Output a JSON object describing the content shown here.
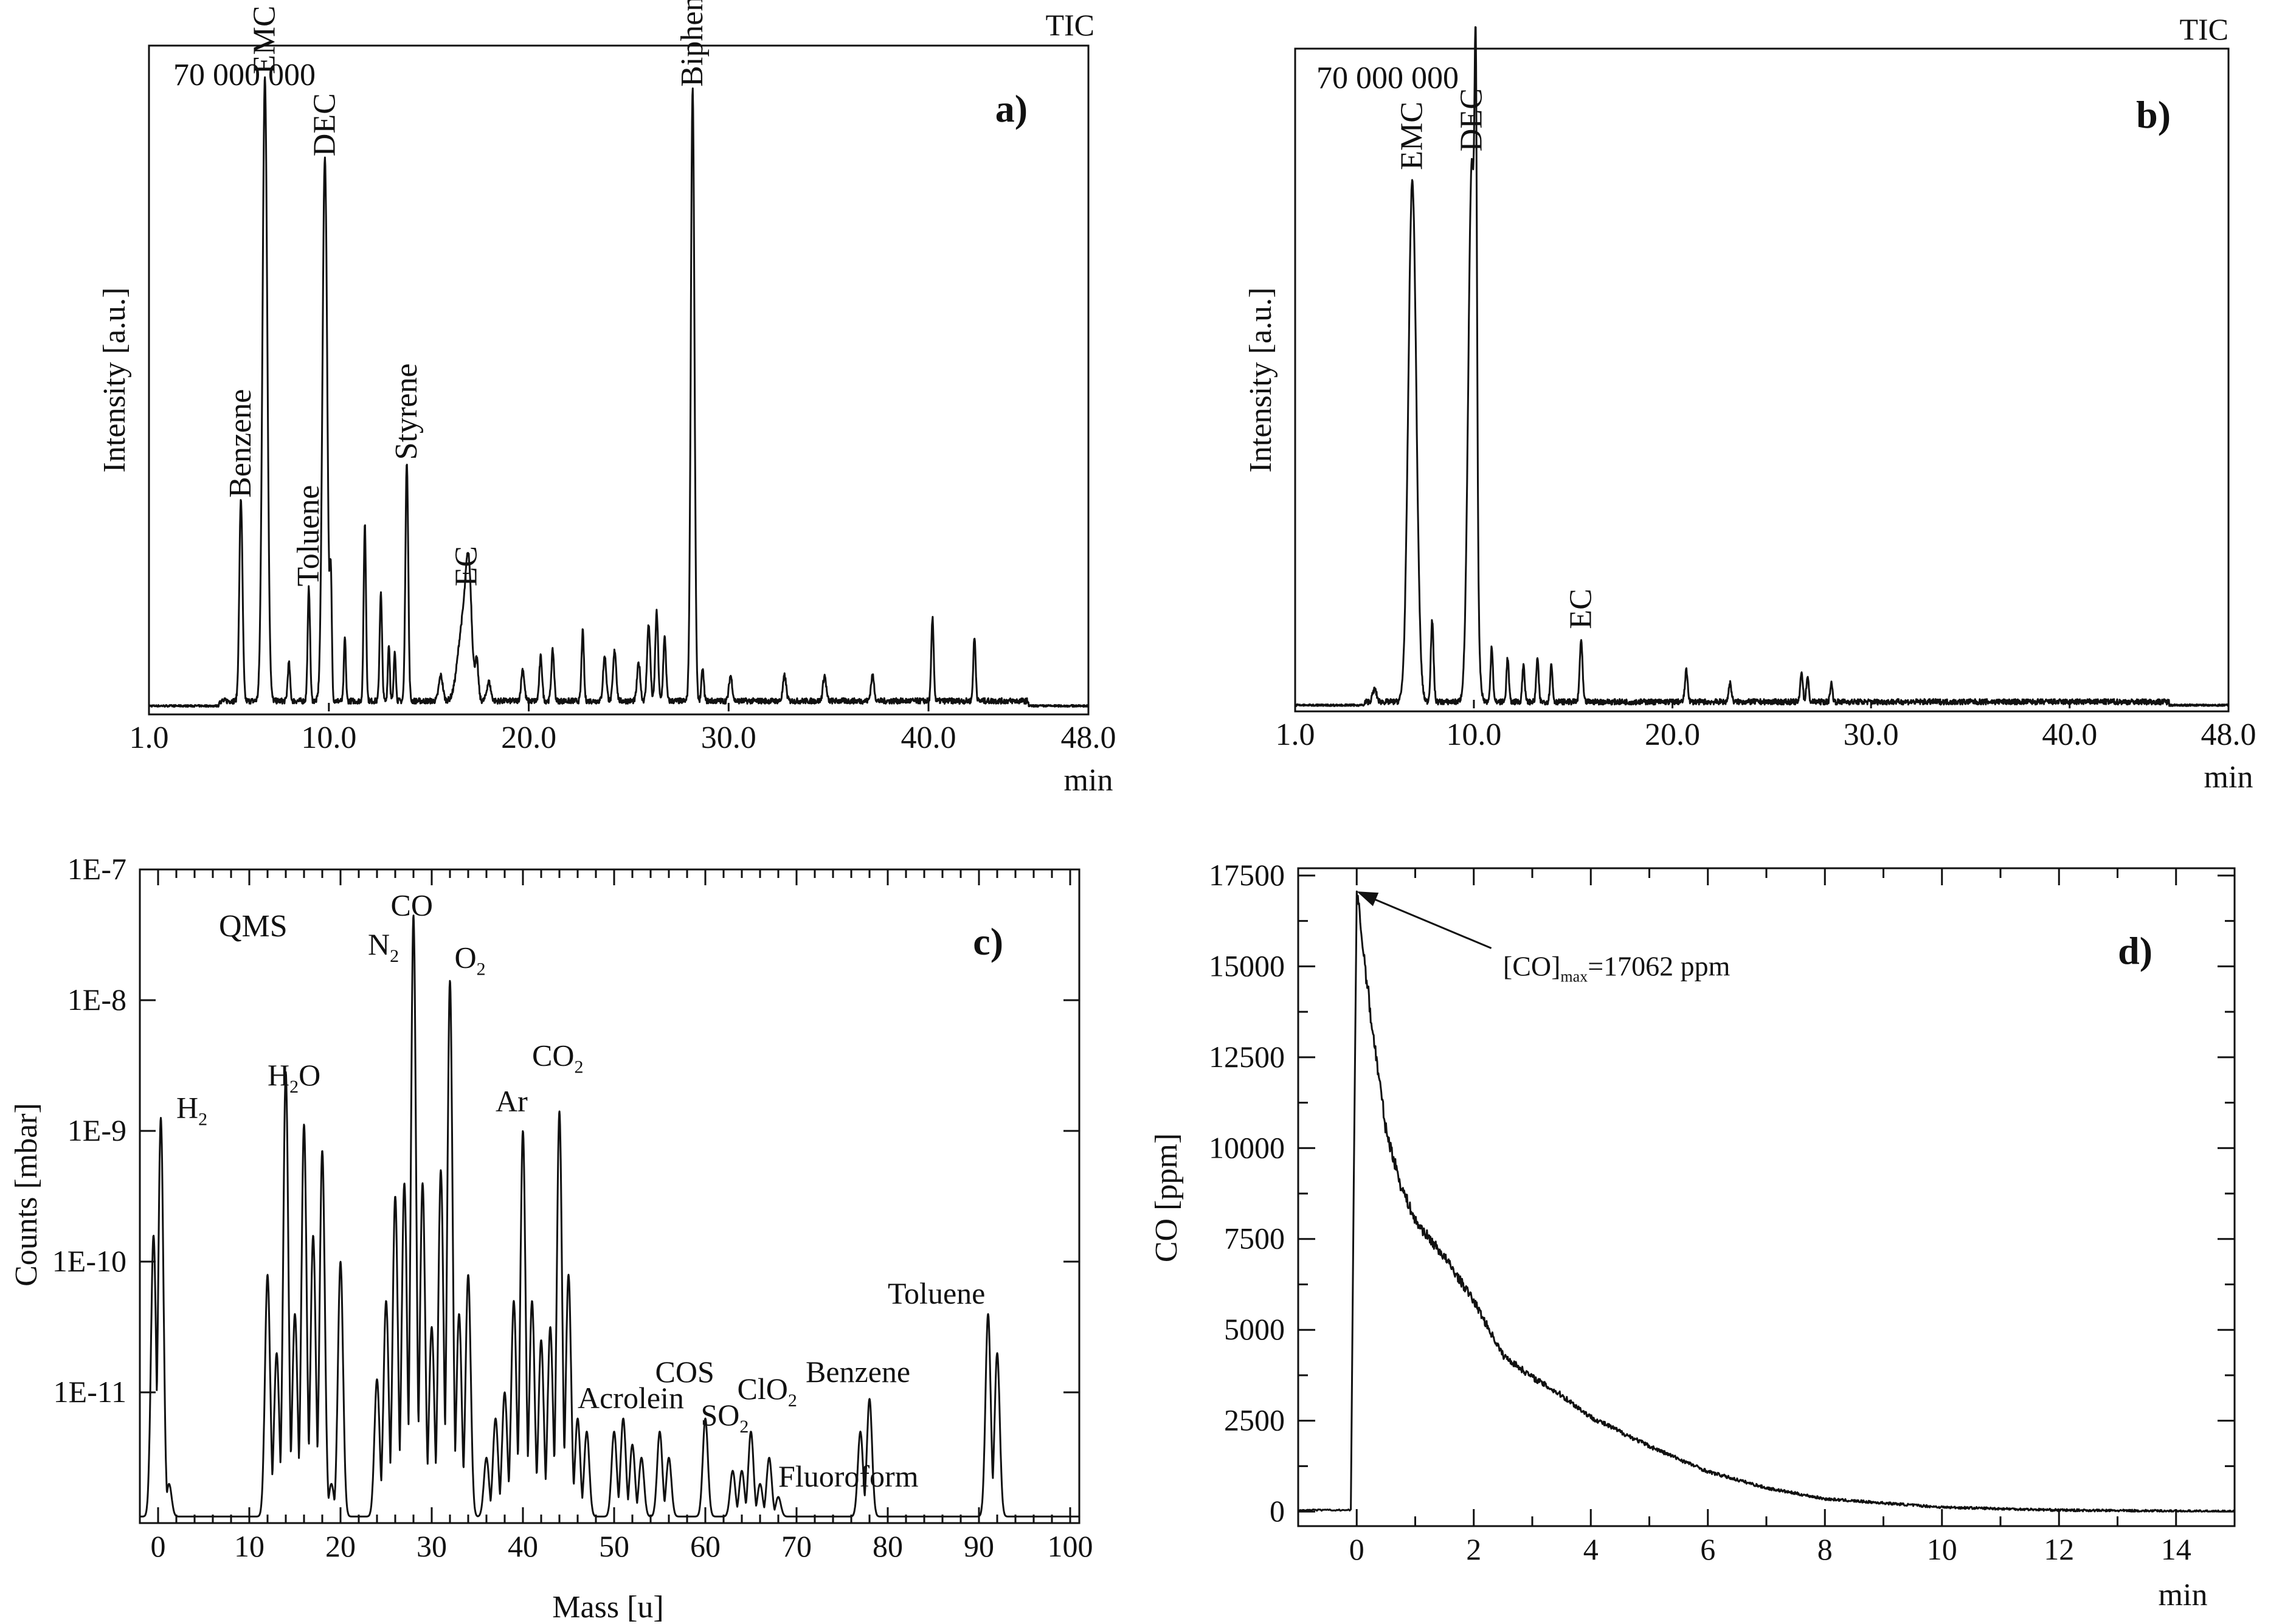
{
  "chart_data": [
    {
      "id": "a",
      "type": "line",
      "panel_label": "a)",
      "corner_label": "TIC",
      "scale_label": "70 000 000",
      "ylabel": "Intensity [a.u.]",
      "xlabel": "min",
      "x_ticks": [
        "1.0",
        "10.0",
        "20.0",
        "30.0",
        "40.0",
        "48.0"
      ],
      "x_tick_values": [
        1,
        10,
        20,
        30,
        40,
        48
      ],
      "xlim": [
        1,
        48
      ],
      "ylim": [
        0,
        100
      ],
      "baseline": 1.2,
      "peaks": [
        {
          "x": 5.6,
          "y": 32,
          "w": 0.08
        },
        {
          "x": 6.8,
          "y": 99,
          "w": 0.12
        },
        {
          "x": 8.0,
          "y": 6,
          "w": 0.06
        },
        {
          "x": 9.0,
          "y": 18,
          "w": 0.06
        },
        {
          "x": 9.8,
          "y": 86,
          "w": 0.12
        },
        {
          "x": 10.1,
          "y": 18,
          "w": 0.05
        },
        {
          "x": 10.8,
          "y": 10,
          "w": 0.05
        },
        {
          "x": 11.8,
          "y": 28,
          "w": 0.06
        },
        {
          "x": 12.6,
          "y": 17,
          "w": 0.06
        },
        {
          "x": 13.0,
          "y": 9,
          "w": 0.05
        },
        {
          "x": 13.3,
          "y": 8,
          "w": 0.05
        },
        {
          "x": 13.9,
          "y": 38,
          "w": 0.07
        },
        {
          "x": 15.6,
          "y": 4,
          "w": 0.1
        },
        {
          "x": 16.7,
          "y": 12,
          "w": 0.25
        },
        {
          "x": 17.0,
          "y": 17,
          "w": 0.15
        },
        {
          "x": 17.4,
          "y": 6,
          "w": 0.08
        },
        {
          "x": 18.0,
          "y": 3,
          "w": 0.1
        },
        {
          "x": 19.7,
          "y": 5,
          "w": 0.08
        },
        {
          "x": 20.6,
          "y": 7,
          "w": 0.07
        },
        {
          "x": 21.2,
          "y": 8,
          "w": 0.07
        },
        {
          "x": 22.7,
          "y": 11,
          "w": 0.06
        },
        {
          "x": 23.8,
          "y": 7,
          "w": 0.08
        },
        {
          "x": 24.3,
          "y": 8,
          "w": 0.08
        },
        {
          "x": 25.5,
          "y": 6,
          "w": 0.08
        },
        {
          "x": 26.0,
          "y": 12,
          "w": 0.08
        },
        {
          "x": 26.4,
          "y": 14,
          "w": 0.07
        },
        {
          "x": 26.8,
          "y": 10,
          "w": 0.07
        },
        {
          "x": 28.2,
          "y": 97,
          "w": 0.09
        },
        {
          "x": 28.7,
          "y": 5,
          "w": 0.06
        },
        {
          "x": 30.1,
          "y": 4,
          "w": 0.08
        },
        {
          "x": 32.8,
          "y": 4,
          "w": 0.08
        },
        {
          "x": 34.8,
          "y": 4,
          "w": 0.08
        },
        {
          "x": 37.2,
          "y": 4,
          "w": 0.08
        },
        {
          "x": 40.2,
          "y": 13,
          "w": 0.06
        },
        {
          "x": 42.3,
          "y": 10,
          "w": 0.06
        }
      ],
      "annotations": [
        {
          "text": "Benzene",
          "x": 5.6,
          "y": 33
        },
        {
          "text": "EMC",
          "x": 6.8,
          "y": 100
        },
        {
          "text": "Toluene",
          "x": 9.0,
          "y": 19
        },
        {
          "text": "DEC",
          "x": 9.8,
          "y": 87
        },
        {
          "text": "Styrene",
          "x": 13.9,
          "y": 39
        },
        {
          "text": "EC",
          "x": 16.9,
          "y": 19
        },
        {
          "text": "Biphenyl",
          "x": 28.2,
          "y": 98
        }
      ]
    },
    {
      "id": "b",
      "type": "line",
      "panel_label": "b)",
      "corner_label": "TIC",
      "scale_label": "70 000 000",
      "ylabel": "Intensity [a.u.]",
      "xlabel": "min",
      "x_ticks": [
        "1.0",
        "10.0",
        "20.0",
        "30.0",
        "40.0",
        "48.0"
      ],
      "x_tick_values": [
        1,
        10,
        20,
        30,
        40,
        48
      ],
      "xlim": [
        1,
        48
      ],
      "ylim": [
        0,
        100
      ],
      "baseline": 0.6,
      "peaks": [
        {
          "x": 5.0,
          "y": 2,
          "w": 0.1
        },
        {
          "x": 6.9,
          "y": 84,
          "w": 0.2
        },
        {
          "x": 7.9,
          "y": 13,
          "w": 0.07
        },
        {
          "x": 9.9,
          "y": 87,
          "w": 0.18
        },
        {
          "x": 10.1,
          "y": 60,
          "w": 0.06
        },
        {
          "x": 10.9,
          "y": 9,
          "w": 0.06
        },
        {
          "x": 11.7,
          "y": 7,
          "w": 0.06
        },
        {
          "x": 12.5,
          "y": 6,
          "w": 0.06
        },
        {
          "x": 13.2,
          "y": 7,
          "w": 0.06
        },
        {
          "x": 13.9,
          "y": 6,
          "w": 0.06
        },
        {
          "x": 15.4,
          "y": 10,
          "w": 0.07
        },
        {
          "x": 20.7,
          "y": 5,
          "w": 0.07
        },
        {
          "x": 22.9,
          "y": 3,
          "w": 0.07
        },
        {
          "x": 26.5,
          "y": 5,
          "w": 0.06
        },
        {
          "x": 26.8,
          "y": 4,
          "w": 0.06
        },
        {
          "x": 28.0,
          "y": 3,
          "w": 0.06
        }
      ],
      "annotations": [
        {
          "text": "EMC",
          "x": 6.9,
          "y": 86
        },
        {
          "text": "DEC",
          "x": 9.9,
          "y": 89
        },
        {
          "text": "EC",
          "x": 15.4,
          "y": 12
        }
      ]
    },
    {
      "id": "c",
      "type": "line",
      "panel_label": "c)",
      "scale_label": "QMS",
      "ylabel": "Counts [mbar]",
      "xlabel": "Mass [u]",
      "x_ticks": [
        "0",
        "10",
        "20",
        "30",
        "40",
        "50",
        "60",
        "70",
        "80",
        "90",
        "100"
      ],
      "x_tick_values": [
        0,
        10,
        20,
        30,
        40,
        50,
        60,
        70,
        80,
        90,
        100
      ],
      "y_ticks": [
        "1E-7",
        "1E-8",
        "1E-9",
        "1E-10",
        "1E-11"
      ],
      "y_tick_values": [
        -7,
        -8,
        -9,
        -10,
        -11
      ],
      "xlim": [
        -2,
        101
      ],
      "ylim": [
        -12,
        -7
      ],
      "yscale": "log10",
      "peaks": [
        {
          "x": -0.5,
          "y": -9.8
        },
        {
          "x": 0.3,
          "y": -8.9
        },
        {
          "x": 1.2,
          "y": -11.7
        },
        {
          "x": 12,
          "y": -10.1
        },
        {
          "x": 13,
          "y": -10.7
        },
        {
          "x": 14,
          "y": -8.55
        },
        {
          "x": 15,
          "y": -10.4
        },
        {
          "x": 16,
          "y": -8.95
        },
        {
          "x": 17,
          "y": -9.8
        },
        {
          "x": 18,
          "y": -9.15
        },
        {
          "x": 19,
          "y": -11.7
        },
        {
          "x": 20,
          "y": -10.0
        },
        {
          "x": 24,
          "y": -10.9
        },
        {
          "x": 25,
          "y": -10.3
        },
        {
          "x": 26,
          "y": -9.5
        },
        {
          "x": 27,
          "y": -9.4
        },
        {
          "x": 28,
          "y": -7.35
        },
        {
          "x": 29,
          "y": -9.4
        },
        {
          "x": 30,
          "y": -10.5
        },
        {
          "x": 31,
          "y": -9.3
        },
        {
          "x": 32,
          "y": -7.85
        },
        {
          "x": 33,
          "y": -10.4
        },
        {
          "x": 34,
          "y": -10.1
        },
        {
          "x": 36,
          "y": -11.5
        },
        {
          "x": 37,
          "y": -11.2
        },
        {
          "x": 38,
          "y": -11.0
        },
        {
          "x": 39,
          "y": -10.3
        },
        {
          "x": 40,
          "y": -9.0
        },
        {
          "x": 41,
          "y": -10.3
        },
        {
          "x": 42,
          "y": -10.6
        },
        {
          "x": 43,
          "y": -10.5
        },
        {
          "x": 44,
          "y": -8.85
        },
        {
          "x": 45,
          "y": -10.1
        },
        {
          "x": 46,
          "y": -11.2
        },
        {
          "x": 47,
          "y": -11.3
        },
        {
          "x": 50,
          "y": -11.3
        },
        {
          "x": 51,
          "y": -11.2
        },
        {
          "x": 52,
          "y": -11.4
        },
        {
          "x": 53,
          "y": -11.5
        },
        {
          "x": 55,
          "y": -11.3
        },
        {
          "x": 56,
          "y": -11.5
        },
        {
          "x": 60,
          "y": -11.2
        },
        {
          "x": 63,
          "y": -11.6
        },
        {
          "x": 64,
          "y": -11.6
        },
        {
          "x": 65,
          "y": -11.3
        },
        {
          "x": 66,
          "y": -11.7
        },
        {
          "x": 67,
          "y": -11.5
        },
        {
          "x": 68,
          "y": -11.8
        },
        {
          "x": 77,
          "y": -11.3
        },
        {
          "x": 78,
          "y": -11.05
        },
        {
          "x": 91,
          "y": -10.4
        },
        {
          "x": 92,
          "y": -10.7
        }
      ],
      "annotations": [
        {
          "text": "H",
          "sub": "2",
          "x": 2,
          "y": -8.9
        },
        {
          "text": "H",
          "sub": "2",
          "tail": "O",
          "x": 12,
          "y": -8.65
        },
        {
          "text": "N",
          "sub": "2",
          "x": 23,
          "y": -7.65
        },
        {
          "text": "CO",
          "x": 25.5,
          "y": -7.35
        },
        {
          "text": "O",
          "sub": "2",
          "x": 32.5,
          "y": -7.75
        },
        {
          "text": "Ar",
          "x": 37,
          "y": -8.85
        },
        {
          "text": "CO",
          "sub": "2",
          "x": 41,
          "y": -8.5
        },
        {
          "text": "Acrolein",
          "x": 46,
          "y": -11.12
        },
        {
          "text": "COS",
          "x": 54.5,
          "y": -10.92
        },
        {
          "text": "SO",
          "sub": "2",
          "x": 59.5,
          "y": -11.25
        },
        {
          "text": "ClO",
          "sub": "2",
          "x": 63.5,
          "y": -11.05
        },
        {
          "text": "Benzene",
          "x": 71,
          "y": -10.92
        },
        {
          "text": "Fluoroform",
          "x": 68,
          "y": -11.72
        },
        {
          "text": "Toluene",
          "x": 80,
          "y": -10.32
        }
      ]
    },
    {
      "id": "d",
      "type": "line",
      "panel_label": "d)",
      "ylabel": "CO [ppm]",
      "xlabel": "min",
      "x_ticks": [
        "0",
        "2",
        "4",
        "6",
        "8",
        "10",
        "12",
        "14"
      ],
      "x_tick_values": [
        0,
        2,
        4,
        6,
        8,
        10,
        12,
        14
      ],
      "y_ticks": [
        "17500",
        "15000",
        "12500",
        "10000",
        "7500",
        "5000",
        "2500",
        "0"
      ],
      "y_tick_values": [
        17500,
        15000,
        12500,
        10000,
        7500,
        5000,
        2500,
        0
      ],
      "xlim": [
        -1,
        15
      ],
      "ylim": [
        -400,
        17700
      ],
      "onset_min": -0.1,
      "peak_min": 0.0,
      "max_co_ppm": 17062,
      "decay_points": [
        [
          0.0,
          17062
        ],
        [
          0.25,
          13500
        ],
        [
          0.5,
          10500
        ],
        [
          0.75,
          9000
        ],
        [
          1.0,
          8000
        ],
        [
          1.5,
          7000
        ],
        [
          2.0,
          5800
        ],
        [
          2.5,
          4300
        ],
        [
          3.0,
          3700
        ],
        [
          3.5,
          3200
        ],
        [
          4.0,
          2600
        ],
        [
          5.0,
          1800
        ],
        [
          6.0,
          1100
        ],
        [
          7.0,
          650
        ],
        [
          8.0,
          350
        ],
        [
          10.0,
          120
        ],
        [
          12.0,
          40
        ],
        [
          15.0,
          0
        ]
      ],
      "annotation": {
        "prefix": "[CO]",
        "sub": "max",
        "suffix": "=17062 ppm"
      }
    }
  ]
}
